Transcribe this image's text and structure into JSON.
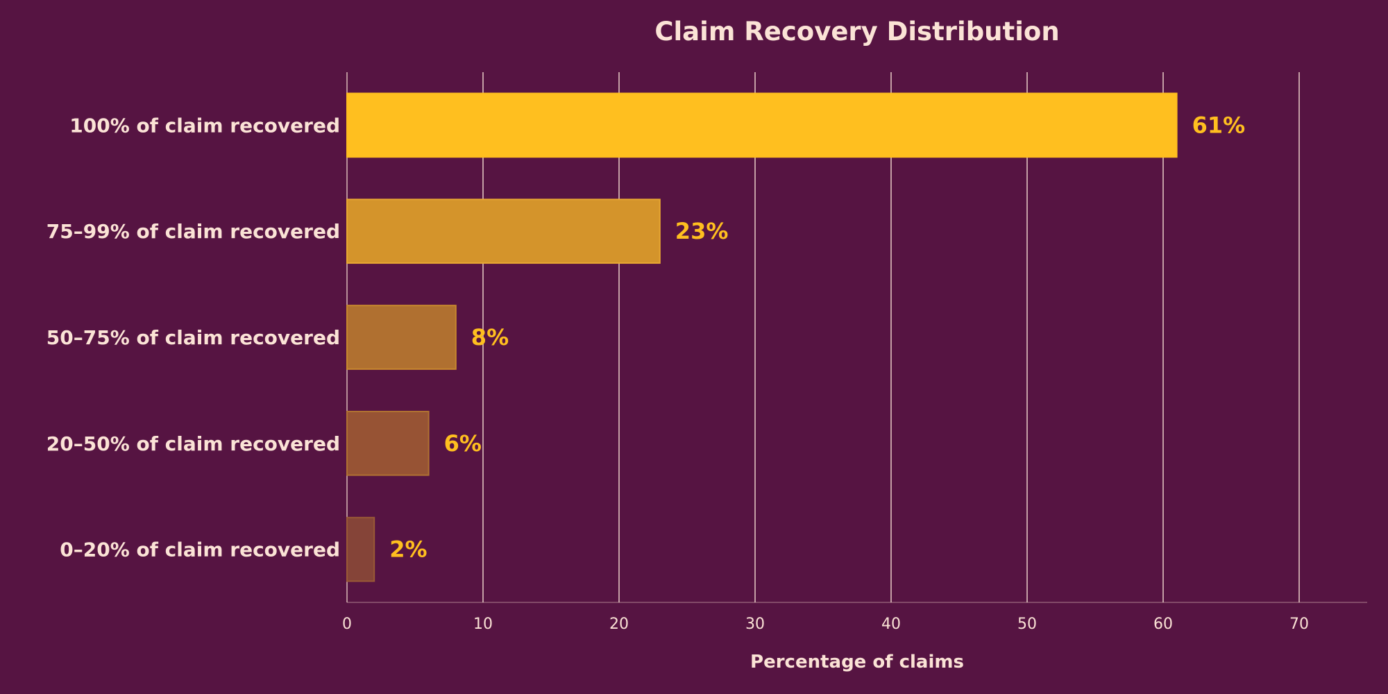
{
  "chart_data": {
    "type": "bar",
    "orientation": "horizontal",
    "title": "Claim Recovery Distribution",
    "xlabel": "Percentage of claims",
    "ylabel": "",
    "xlim": [
      0,
      75
    ],
    "xticks": [
      0,
      10,
      20,
      30,
      40,
      50,
      60,
      70
    ],
    "grid": "vertical",
    "categories": [
      "100% of claim recovered",
      "75–99% of claim recovered",
      "50–75% of claim recovered",
      "20–50% of claim recovered",
      "0–20% of claim recovered"
    ],
    "values": [
      61,
      23,
      8,
      6,
      2
    ],
    "data_labels": [
      "61%",
      "23%",
      "8%",
      "6%",
      "2%"
    ],
    "bar_colors": [
      "#ffbf1f",
      "#d4942b",
      "#b07030",
      "#975334",
      "#854438"
    ],
    "bar_edge_colors": [
      "#ffbf1f",
      "#e8a832",
      "#c8882e",
      "#b07232",
      "#9a5a36"
    ]
  },
  "colors": {
    "background": "#561442",
    "text": "#fbe3d6",
    "value_label": "#ffbf1f",
    "grid": "#fbe3d6"
  }
}
